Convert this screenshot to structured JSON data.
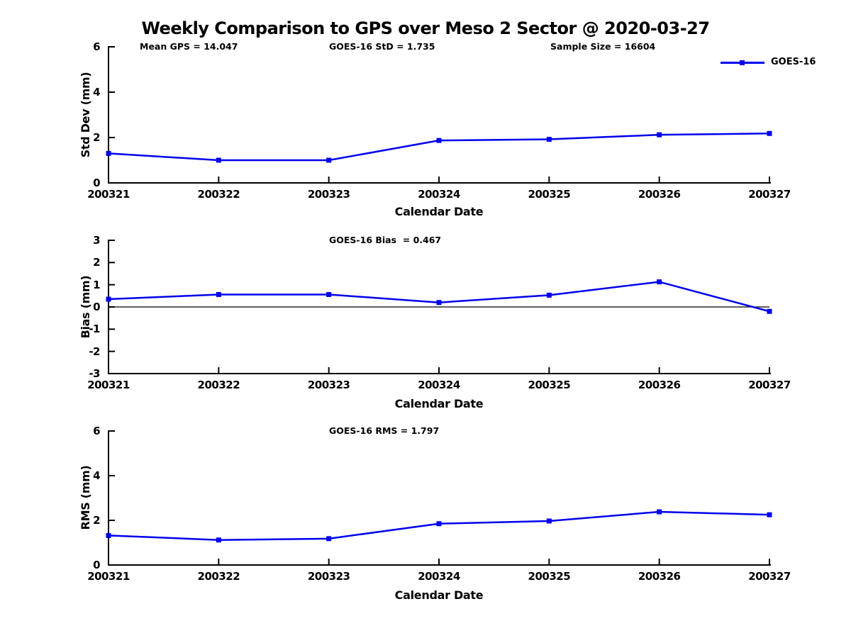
{
  "title": "Weekly Comparison to GPS over Meso 2 Sector @ 2020-03-27",
  "legend": {
    "label": "GOES-16",
    "position": "top-right"
  },
  "series_color": "#0000EE",
  "axis_color": "#000000",
  "chart_data": [
    {
      "type": "line",
      "categories": [
        "200321",
        "200322",
        "200323",
        "200324",
        "200325",
        "200326",
        "200327"
      ],
      "series": [
        {
          "name": "GOES-16",
          "values": [
            1.3,
            1.0,
            1.0,
            1.87,
            1.92,
            2.12,
            2.18
          ]
        }
      ],
      "xlabel": "Calendar Date",
      "ylabel": "Std Dev (mm)",
      "ylim": [
        0,
        6
      ],
      "yticks": [
        0,
        2,
        4,
        6
      ],
      "grid": false,
      "zero_line": false,
      "legend_position": "top-right",
      "annotations": [
        {
          "text": "Mean GPS = 14.047"
        },
        {
          "text": "GOES-16 StD = 1.735"
        },
        {
          "text": "Sample Size = 16604"
        }
      ]
    },
    {
      "type": "line",
      "categories": [
        "200321",
        "200322",
        "200323",
        "200324",
        "200325",
        "200326",
        "200327"
      ],
      "series": [
        {
          "name": "GOES-16",
          "values": [
            0.35,
            0.56,
            0.56,
            0.2,
            0.53,
            1.13,
            -0.2
          ]
        }
      ],
      "xlabel": "Calendar Date",
      "ylabel": "Bias (mm)",
      "ylim": [
        -3,
        3
      ],
      "yticks": [
        -3,
        -2,
        -1,
        0,
        1,
        2,
        3
      ],
      "grid": false,
      "zero_line": true,
      "annotations": [
        {
          "text": "GOES-16 Bias  = 0.467"
        }
      ]
    },
    {
      "type": "line",
      "categories": [
        "200321",
        "200322",
        "200323",
        "200324",
        "200325",
        "200326",
        "200327"
      ],
      "series": [
        {
          "name": "GOES-16",
          "values": [
            1.32,
            1.12,
            1.18,
            1.85,
            1.97,
            2.38,
            2.25
          ]
        }
      ],
      "xlabel": "Calendar Date",
      "ylabel": "RMS (mm)",
      "ylim": [
        0,
        6
      ],
      "yticks": [
        0,
        2,
        4,
        6
      ],
      "grid": false,
      "zero_line": false,
      "annotations": [
        {
          "text": "GOES-16 RMS = 1.797"
        }
      ]
    }
  ]
}
